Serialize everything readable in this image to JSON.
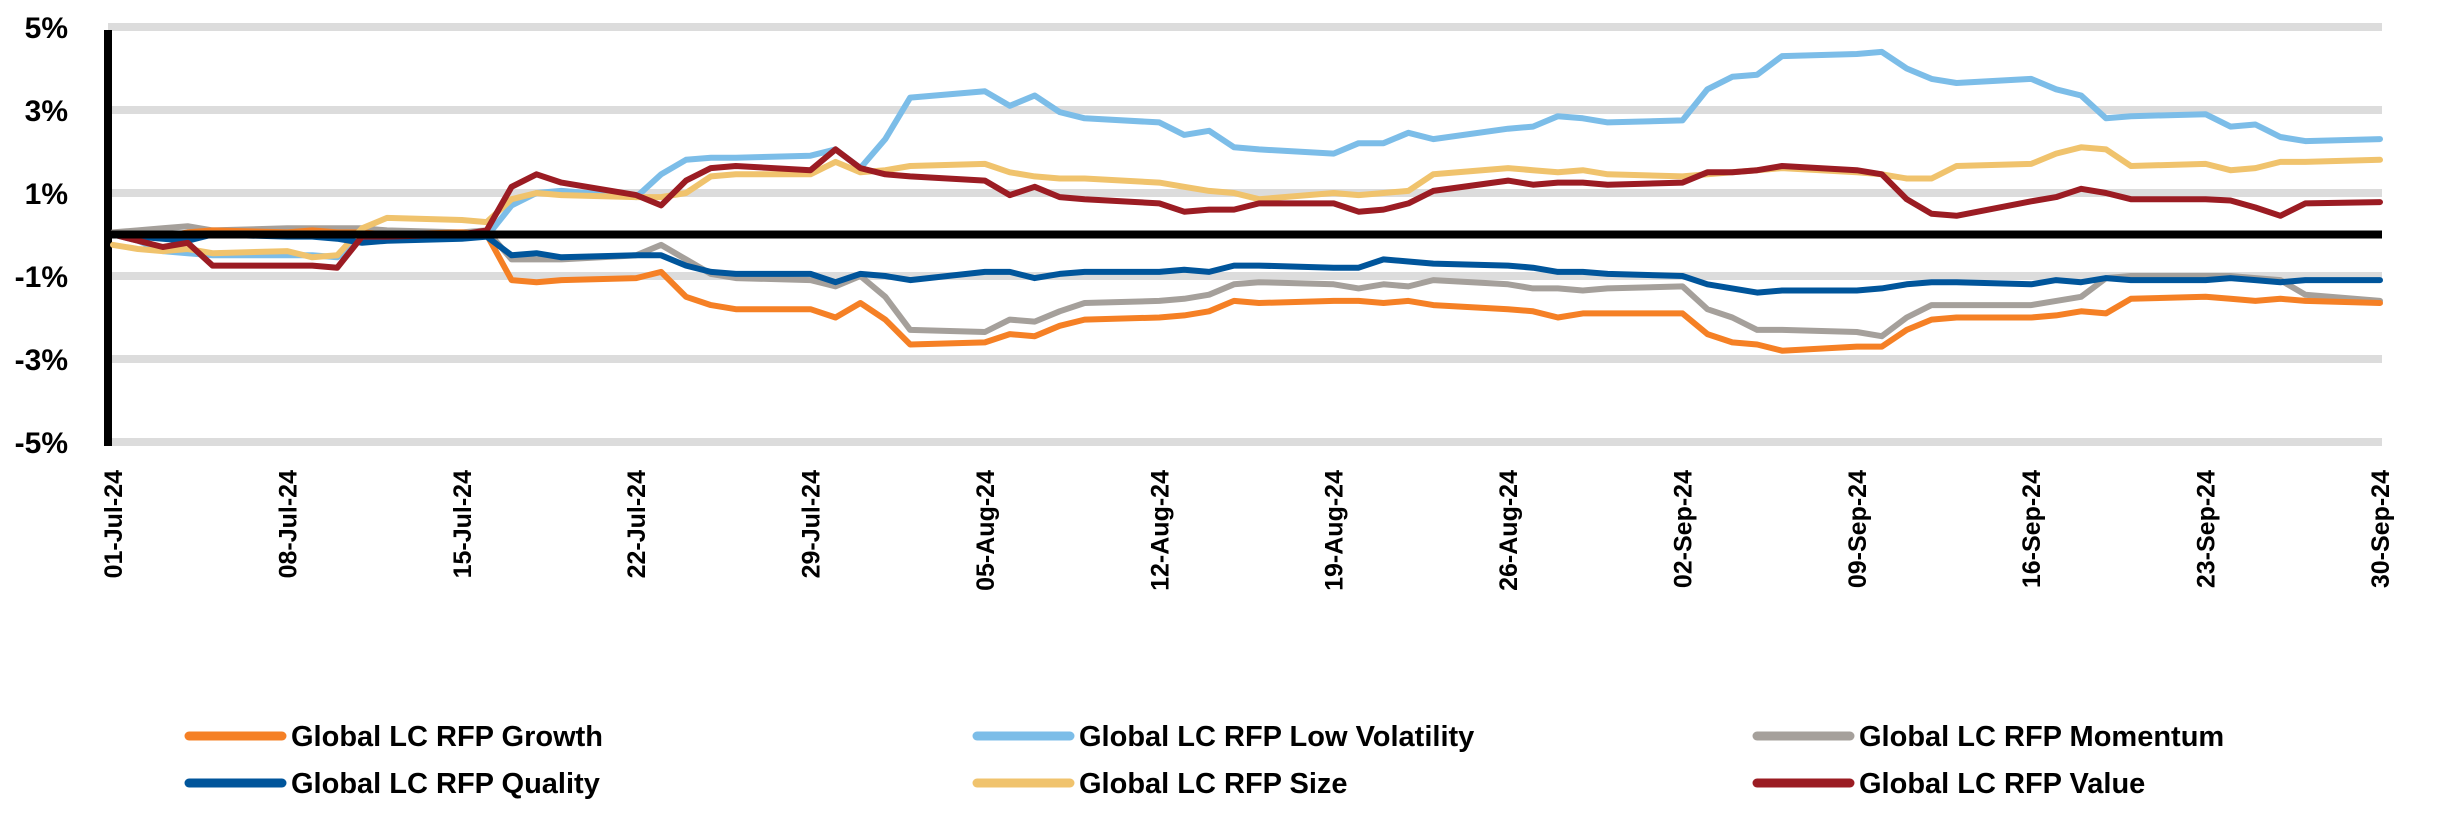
{
  "chart_data": {
    "type": "line",
    "title": "",
    "xlabel": "",
    "ylabel": "",
    "ylim": [
      -5,
      5
    ],
    "y_ticks": [
      "5%",
      "3%",
      "1%",
      "-1%",
      "-3%",
      "-5%"
    ],
    "y_tick_values": [
      5,
      3,
      1,
      -1,
      -3,
      -5
    ],
    "x_range": [
      "2024-07-01",
      "2024-09-30"
    ],
    "x_ticks": [
      "01-Jul-24",
      "08-Jul-24",
      "15-Jul-24",
      "22-Jul-24",
      "29-Jul-24",
      "05-Aug-24",
      "12-Aug-24",
      "19-Aug-24",
      "26-Aug-24",
      "02-Sep-24",
      "09-Sep-24",
      "16-Sep-24",
      "23-Sep-24",
      "30-Sep-24"
    ],
    "x_tick_dates": [
      "2024-07-01",
      "2024-07-08",
      "2024-07-15",
      "2024-07-22",
      "2024-07-29",
      "2024-08-05",
      "2024-08-12",
      "2024-08-19",
      "2024-08-26",
      "2024-09-02",
      "2024-09-09",
      "2024-09-16",
      "2024-09-23",
      "2024-09-30"
    ],
    "grid": "horizontal",
    "zero_line": true,
    "legend_position": "bottom",
    "x": [
      "2024-07-01",
      "2024-07-02",
      "2024-07-03",
      "2024-07-04",
      "2024-07-05",
      "2024-07-08",
      "2024-07-09",
      "2024-07-10",
      "2024-07-11",
      "2024-07-12",
      "2024-07-15",
      "2024-07-16",
      "2024-07-17",
      "2024-07-18",
      "2024-07-19",
      "2024-07-22",
      "2024-07-23",
      "2024-07-24",
      "2024-07-25",
      "2024-07-26",
      "2024-07-29",
      "2024-07-30",
      "2024-07-31",
      "2024-08-01",
      "2024-08-02",
      "2024-08-05",
      "2024-08-06",
      "2024-08-07",
      "2024-08-08",
      "2024-08-09",
      "2024-08-12",
      "2024-08-13",
      "2024-08-14",
      "2024-08-15",
      "2024-08-16",
      "2024-08-19",
      "2024-08-20",
      "2024-08-21",
      "2024-08-22",
      "2024-08-23",
      "2024-08-26",
      "2024-08-27",
      "2024-08-28",
      "2024-08-29",
      "2024-08-30",
      "2024-09-02",
      "2024-09-03",
      "2024-09-04",
      "2024-09-05",
      "2024-09-06",
      "2024-09-09",
      "2024-09-10",
      "2024-09-11",
      "2024-09-12",
      "2024-09-13",
      "2024-09-16",
      "2024-09-17",
      "2024-09-18",
      "2024-09-19",
      "2024-09-20",
      "2024-09-23",
      "2024-09-24",
      "2024-09-25",
      "2024-09-26",
      "2024-09-27",
      "2024-09-30"
    ],
    "series": [
      {
        "name": "Global LC RFP Growth",
        "color": "#f58025",
        "values": [
          0,
          0,
          -0.05,
          0.05,
          0.1,
          0.05,
          0.1,
          0.05,
          0.05,
          0,
          0.05,
          0,
          -1.1,
          -1.15,
          -1.1,
          -1.05,
          -0.9,
          -1.5,
          -1.7,
          -1.8,
          -1.8,
          -2.0,
          -1.65,
          -2.05,
          -2.65,
          -2.6,
          -2.4,
          -2.45,
          -2.2,
          -2.05,
          -2.0,
          -1.95,
          -1.85,
          -1.6,
          -1.65,
          -1.6,
          -1.6,
          -1.65,
          -1.6,
          -1.7,
          -1.8,
          -1.85,
          -2.0,
          -1.9,
          -1.9,
          -1.9,
          -2.4,
          -2.6,
          -2.65,
          -2.8,
          -2.7,
          -2.7,
          -2.3,
          -2.05,
          -2.0,
          -2.0,
          -1.95,
          -1.85,
          -1.9,
          -1.55,
          -1.5,
          -1.55,
          -1.6,
          -1.55,
          -1.6,
          -1.65
        ]
      },
      {
        "name": "Global LC RFP Low Volatility",
        "color": "#7cbde8",
        "values": [
          0,
          -0.15,
          -0.4,
          -0.45,
          -0.5,
          -0.5,
          -0.5,
          -0.55,
          -0.1,
          -0.05,
          -0.05,
          -0.05,
          0.7,
          1.0,
          1.05,
          0.9,
          1.45,
          1.8,
          1.85,
          1.85,
          1.9,
          2.05,
          1.6,
          2.3,
          3.3,
          3.45,
          3.1,
          3.35,
          2.95,
          2.8,
          2.7,
          2.4,
          2.5,
          2.1,
          2.05,
          1.95,
          2.2,
          2.2,
          2.45,
          2.3,
          2.55,
          2.6,
          2.85,
          2.8,
          2.7,
          2.75,
          3.5,
          3.8,
          3.85,
          4.3,
          4.35,
          4.4,
          4.0,
          3.75,
          3.65,
          3.75,
          3.5,
          3.35,
          2.8,
          2.85,
          2.9,
          2.6,
          2.65,
          2.35,
          2.25,
          2.3
        ]
      },
      {
        "name": "Global LC RFP Momentum",
        "color": "#a5a09b",
        "values": [
          0.05,
          0.1,
          0.15,
          0.2,
          0.1,
          0.15,
          0.15,
          0.15,
          0.15,
          0.1,
          0.05,
          0.1,
          -0.6,
          -0.6,
          -0.6,
          -0.5,
          -0.25,
          -0.6,
          -0.95,
          -1.05,
          -1.1,
          -1.25,
          -1.0,
          -1.5,
          -2.3,
          -2.35,
          -2.05,
          -2.1,
          -1.85,
          -1.65,
          -1.6,
          -1.55,
          -1.45,
          -1.2,
          -1.15,
          -1.2,
          -1.3,
          -1.2,
          -1.25,
          -1.1,
          -1.2,
          -1.3,
          -1.3,
          -1.35,
          -1.3,
          -1.25,
          -1.8,
          -2.0,
          -2.3,
          -2.3,
          -2.35,
          -2.45,
          -2.0,
          -1.7,
          -1.7,
          -1.7,
          -1.6,
          -1.5,
          -1.05,
          -1.0,
          -1.0,
          -1.0,
          -1.05,
          -1.1,
          -1.45,
          -1.6
        ]
      },
      {
        "name": "Global LC RFP Quality",
        "color": "#00559b",
        "values": [
          0,
          -0.05,
          -0.1,
          -0.15,
          0,
          -0.05,
          -0.05,
          -0.1,
          -0.2,
          -0.15,
          -0.1,
          -0.05,
          -0.5,
          -0.45,
          -0.55,
          -0.5,
          -0.5,
          -0.75,
          -0.9,
          -0.95,
          -0.95,
          -1.15,
          -0.95,
          -1.0,
          -1.1,
          -0.9,
          -0.9,
          -1.05,
          -0.95,
          -0.9,
          -0.9,
          -0.85,
          -0.9,
          -0.75,
          -0.75,
          -0.8,
          -0.8,
          -0.6,
          -0.65,
          -0.7,
          -0.75,
          -0.8,
          -0.9,
          -0.9,
          -0.95,
          -1.0,
          -1.2,
          -1.3,
          -1.4,
          -1.35,
          -1.35,
          -1.3,
          -1.2,
          -1.15,
          -1.15,
          -1.2,
          -1.1,
          -1.15,
          -1.05,
          -1.1,
          -1.1,
          -1.05,
          -1.1,
          -1.15,
          -1.1,
          -1.1
        ]
      },
      {
        "name": "Global LC RFP Size",
        "color": "#f0c36d",
        "values": [
          -0.25,
          -0.35,
          -0.4,
          -0.35,
          -0.45,
          -0.4,
          -0.55,
          -0.5,
          0.15,
          0.4,
          0.35,
          0.3,
          0.85,
          1.0,
          0.95,
          0.9,
          0.9,
          1.0,
          1.4,
          1.45,
          1.45,
          1.75,
          1.5,
          1.55,
          1.65,
          1.7,
          1.5,
          1.4,
          1.35,
          1.35,
          1.25,
          1.15,
          1.05,
          1.0,
          0.85,
          1.0,
          0.95,
          1.0,
          1.05,
          1.45,
          1.6,
          1.55,
          1.5,
          1.55,
          1.45,
          1.4,
          1.45,
          1.5,
          1.55,
          1.6,
          1.5,
          1.45,
          1.35,
          1.35,
          1.65,
          1.7,
          1.95,
          2.1,
          2.05,
          1.65,
          1.7,
          1.55,
          1.6,
          1.75,
          1.75,
          1.8
        ]
      },
      {
        "name": "Global LC RFP Value",
        "color": "#9b1c23",
        "values": [
          0,
          -0.15,
          -0.3,
          -0.2,
          -0.75,
          -0.75,
          -0.75,
          -0.8,
          -0.05,
          -0.05,
          0,
          0.1,
          1.15,
          1.45,
          1.25,
          0.95,
          0.7,
          1.3,
          1.6,
          1.65,
          1.55,
          2.05,
          1.6,
          1.45,
          1.4,
          1.3,
          0.95,
          1.15,
          0.9,
          0.85,
          0.75,
          0.55,
          0.6,
          0.6,
          0.75,
          0.75,
          0.55,
          0.6,
          0.75,
          1.05,
          1.3,
          1.2,
          1.25,
          1.25,
          1.2,
          1.25,
          1.5,
          1.5,
          1.55,
          1.65,
          1.55,
          1.45,
          0.85,
          0.5,
          0.45,
          0.8,
          0.9,
          1.1,
          1.0,
          0.85,
          0.85,
          0.82,
          0.65,
          0.45,
          0.75,
          0.78
        ]
      }
    ],
    "legend_order": [
      0,
      1,
      2,
      3,
      4,
      5
    ]
  }
}
